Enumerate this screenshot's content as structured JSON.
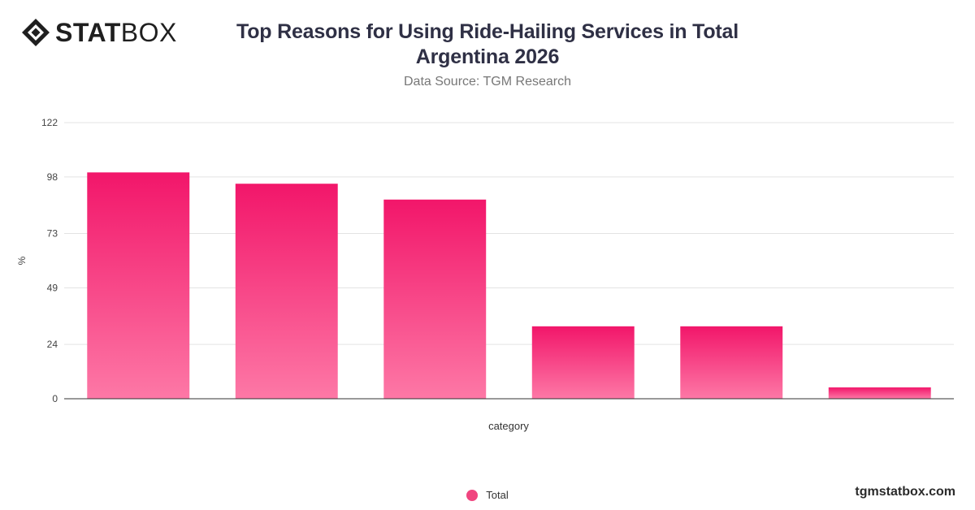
{
  "header": {
    "logo_bold": "STAT",
    "logo_light": "BOX",
    "title": "Top Reasons for Using Ride-Hailing Services in Total Argentina 2026",
    "subtitle": "Data Source: TGM Research"
  },
  "footer": {
    "brand_url": "tgmstatbox.com"
  },
  "colors": {
    "bar_top": "#f2166a",
    "bar_bottom": "#fd78a6",
    "title": "#2f3045",
    "grid": "#e3e3e3"
  },
  "chart_data": {
    "type": "bar",
    "categories": [
      "",
      "",
      "",
      "",
      "",
      ""
    ],
    "series": [
      {
        "name": "Total",
        "values": [
          100,
          95,
          88,
          32,
          32,
          5
        ]
      }
    ],
    "xlabel": "category",
    "ylabel": "%",
    "ylim": [
      0,
      122
    ],
    "yticks": [
      0,
      24,
      49,
      73,
      98,
      122
    ],
    "grid": true,
    "legend": "bottom-center"
  }
}
